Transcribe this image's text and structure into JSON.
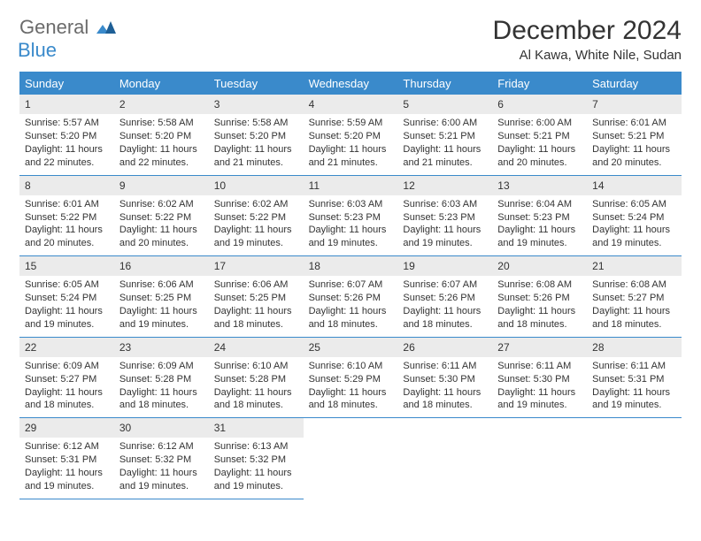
{
  "logo": {
    "text1": "General",
    "text2": "Blue"
  },
  "title": "December 2024",
  "location": "Al Kawa, White Nile, Sudan",
  "colors": {
    "accent": "#3a8acb",
    "header_bg": "#3a8acb",
    "daynum_bg": "#ebebeb",
    "text": "#333333",
    "logo_gray": "#6b6b6b"
  },
  "day_headers": [
    "Sunday",
    "Monday",
    "Tuesday",
    "Wednesday",
    "Thursday",
    "Friday",
    "Saturday"
  ],
  "days": [
    {
      "n": "1",
      "sr": "5:57 AM",
      "ss": "5:20 PM",
      "dl": "11 hours and 22 minutes."
    },
    {
      "n": "2",
      "sr": "5:58 AM",
      "ss": "5:20 PM",
      "dl": "11 hours and 22 minutes."
    },
    {
      "n": "3",
      "sr": "5:58 AM",
      "ss": "5:20 PM",
      "dl": "11 hours and 21 minutes."
    },
    {
      "n": "4",
      "sr": "5:59 AM",
      "ss": "5:20 PM",
      "dl": "11 hours and 21 minutes."
    },
    {
      "n": "5",
      "sr": "6:00 AM",
      "ss": "5:21 PM",
      "dl": "11 hours and 21 minutes."
    },
    {
      "n": "6",
      "sr": "6:00 AM",
      "ss": "5:21 PM",
      "dl": "11 hours and 20 minutes."
    },
    {
      "n": "7",
      "sr": "6:01 AM",
      "ss": "5:21 PM",
      "dl": "11 hours and 20 minutes."
    },
    {
      "n": "8",
      "sr": "6:01 AM",
      "ss": "5:22 PM",
      "dl": "11 hours and 20 minutes."
    },
    {
      "n": "9",
      "sr": "6:02 AM",
      "ss": "5:22 PM",
      "dl": "11 hours and 20 minutes."
    },
    {
      "n": "10",
      "sr": "6:02 AM",
      "ss": "5:22 PM",
      "dl": "11 hours and 19 minutes."
    },
    {
      "n": "11",
      "sr": "6:03 AM",
      "ss": "5:23 PM",
      "dl": "11 hours and 19 minutes."
    },
    {
      "n": "12",
      "sr": "6:03 AM",
      "ss": "5:23 PM",
      "dl": "11 hours and 19 minutes."
    },
    {
      "n": "13",
      "sr": "6:04 AM",
      "ss": "5:23 PM",
      "dl": "11 hours and 19 minutes."
    },
    {
      "n": "14",
      "sr": "6:05 AM",
      "ss": "5:24 PM",
      "dl": "11 hours and 19 minutes."
    },
    {
      "n": "15",
      "sr": "6:05 AM",
      "ss": "5:24 PM",
      "dl": "11 hours and 19 minutes."
    },
    {
      "n": "16",
      "sr": "6:06 AM",
      "ss": "5:25 PM",
      "dl": "11 hours and 19 minutes."
    },
    {
      "n": "17",
      "sr": "6:06 AM",
      "ss": "5:25 PM",
      "dl": "11 hours and 18 minutes."
    },
    {
      "n": "18",
      "sr": "6:07 AM",
      "ss": "5:26 PM",
      "dl": "11 hours and 18 minutes."
    },
    {
      "n": "19",
      "sr": "6:07 AM",
      "ss": "5:26 PM",
      "dl": "11 hours and 18 minutes."
    },
    {
      "n": "20",
      "sr": "6:08 AM",
      "ss": "5:26 PM",
      "dl": "11 hours and 18 minutes."
    },
    {
      "n": "21",
      "sr": "6:08 AM",
      "ss": "5:27 PM",
      "dl": "11 hours and 18 minutes."
    },
    {
      "n": "22",
      "sr": "6:09 AM",
      "ss": "5:27 PM",
      "dl": "11 hours and 18 minutes."
    },
    {
      "n": "23",
      "sr": "6:09 AM",
      "ss": "5:28 PM",
      "dl": "11 hours and 18 minutes."
    },
    {
      "n": "24",
      "sr": "6:10 AM",
      "ss": "5:28 PM",
      "dl": "11 hours and 18 minutes."
    },
    {
      "n": "25",
      "sr": "6:10 AM",
      "ss": "5:29 PM",
      "dl": "11 hours and 18 minutes."
    },
    {
      "n": "26",
      "sr": "6:11 AM",
      "ss": "5:30 PM",
      "dl": "11 hours and 18 minutes."
    },
    {
      "n": "27",
      "sr": "6:11 AM",
      "ss": "5:30 PM",
      "dl": "11 hours and 19 minutes."
    },
    {
      "n": "28",
      "sr": "6:11 AM",
      "ss": "5:31 PM",
      "dl": "11 hours and 19 minutes."
    },
    {
      "n": "29",
      "sr": "6:12 AM",
      "ss": "5:31 PM",
      "dl": "11 hours and 19 minutes."
    },
    {
      "n": "30",
      "sr": "6:12 AM",
      "ss": "5:32 PM",
      "dl": "11 hours and 19 minutes."
    },
    {
      "n": "31",
      "sr": "6:13 AM",
      "ss": "5:32 PM",
      "dl": "11 hours and 19 minutes."
    }
  ],
  "labels": {
    "sunrise": "Sunrise:",
    "sunset": "Sunset:",
    "daylight": "Daylight:"
  },
  "layout": {
    "start_offset": 0,
    "trailing_empty": 4
  }
}
